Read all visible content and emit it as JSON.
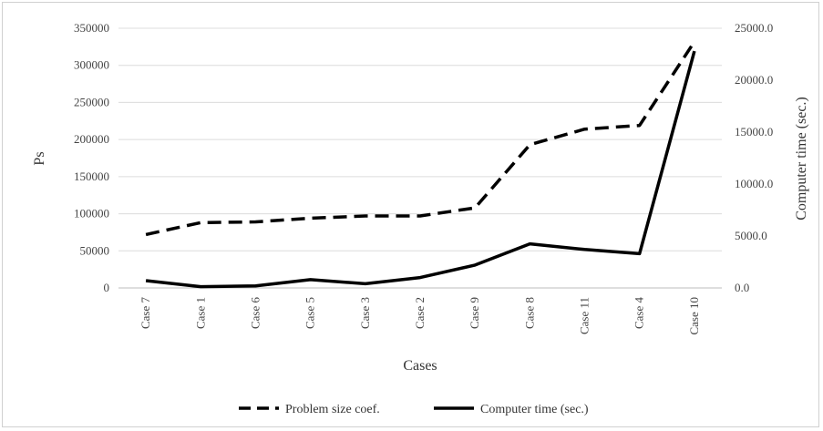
{
  "chart_data": {
    "type": "line",
    "categories": [
      "Case 7",
      "Case 1",
      "Case 6",
      "Case 5",
      "Case 3",
      "Case 2",
      "Case 9",
      "Case 8",
      "Case 11",
      "Case 4",
      "Case 10"
    ],
    "xlabel": "Cases",
    "ylabel_left": "Ps",
    "ylabel_right": "Computer time (sec.)",
    "ylim_left": [
      0,
      350000
    ],
    "yticks_left": [
      "0",
      "50000",
      "100000",
      "150000",
      "200000",
      "250000",
      "300000",
      "350000"
    ],
    "ylim_right": [
      0,
      25000
    ],
    "yticks_right": [
      "0.0",
      "5000.0",
      "10000.0",
      "15000.0",
      "20000.0",
      "25000.0"
    ],
    "grid": true,
    "legend_position": "bottom",
    "series": [
      {
        "name": "Problem size coef.",
        "axis": "left",
        "style": "dashed",
        "values": [
          72000,
          88000,
          89000,
          94000,
          97000,
          97000,
          108000,
          193000,
          214000,
          219000,
          332000
        ]
      },
      {
        "name": "Computer time (sec.)",
        "axis": "right",
        "style": "solid",
        "values": [
          700,
          120,
          200,
          800,
          400,
          1000,
          2200,
          4250,
          3700,
          3300,
          22800
        ]
      }
    ]
  }
}
